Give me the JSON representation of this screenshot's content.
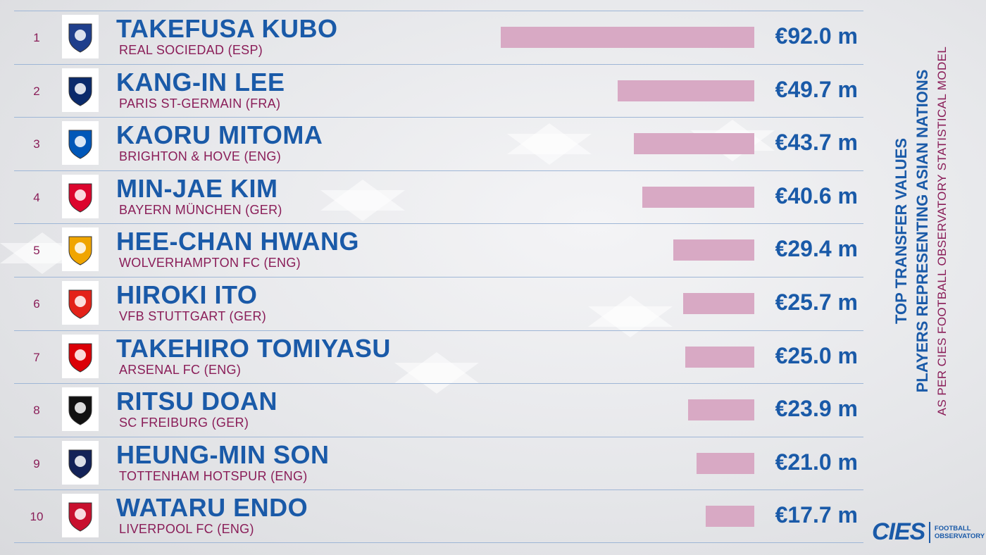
{
  "colors": {
    "primary": "#1a5aa8",
    "secondary": "#8a1d58",
    "bar": "#d8a9c4",
    "divider": "#9eb6d6"
  },
  "side": {
    "title_line1": "TOP TRANSFER VALUES",
    "title_line2": "PLAYERS REPRESENTING ASIAN NATIONS",
    "subtitle": "AS PER CIES FOOTBALL OBSERVATORY STATISTICAL MODEL"
  },
  "brand": {
    "name": "CIES",
    "line1": "FOOTBALL",
    "line2": "OBSERVATORY"
  },
  "chart_data": {
    "type": "bar",
    "orientation": "horizontal",
    "title": "TOP TRANSFER VALUES PLAYERS REPRESENTING ASIAN NATIONS",
    "subtitle": "AS PER CIES FOOTBALL OBSERVATORY STATISTICAL MODEL",
    "unit": "€ m",
    "categories": [
      "TAKEFUSA KUBO",
      "KANG-IN LEE",
      "KAORU MITOMA",
      "MIN-JAE KIM",
      "HEE-CHAN HWANG",
      "HIROKI ITO",
      "TAKEHIRO TOMIYASU",
      "RITSU DOAN",
      "HEUNG-MIN SON",
      "WATARU ENDO"
    ],
    "values": [
      92.0,
      49.7,
      43.7,
      40.6,
      29.4,
      25.7,
      25.0,
      23.9,
      21.0,
      17.7
    ],
    "rows": [
      {
        "rank": "1",
        "name": "TAKEFUSA KUBO",
        "club": "REAL SOCIEDAD (ESP)",
        "value": 92.0,
        "value_label": "€92.0 m",
        "logo": "real-sociedad-crest-icon",
        "logo_color": "#1f3f8c"
      },
      {
        "rank": "2",
        "name": "KANG-IN LEE",
        "club": "PARIS ST-GERMAIN (FRA)",
        "value": 49.7,
        "value_label": "€49.7 m",
        "logo": "psg-crest-icon",
        "logo_color": "#0a2a6b"
      },
      {
        "rank": "3",
        "name": "KAORU MITOMA",
        "club": "BRIGHTON & HOVE (ENG)",
        "value": 43.7,
        "value_label": "€43.7 m",
        "logo": "brighton-crest-icon",
        "logo_color": "#0057b8"
      },
      {
        "rank": "4",
        "name": "MIN-JAE KIM",
        "club": "BAYERN MÜNCHEN (GER)",
        "value": 40.6,
        "value_label": "€40.6 m",
        "logo": "bayern-crest-icon",
        "logo_color": "#dc052d"
      },
      {
        "rank": "5",
        "name": "HEE-CHAN HWANG",
        "club": "WOLVERHAMPTON FC (ENG)",
        "value": 29.4,
        "value_label": "€29.4 m",
        "logo": "wolves-crest-icon",
        "logo_color": "#f0a500"
      },
      {
        "rank": "6",
        "name": "HIROKI ITO",
        "club": "VFB STUTTGART (GER)",
        "value": 25.7,
        "value_label": "€25.7 m",
        "logo": "stuttgart-crest-icon",
        "logo_color": "#e32219"
      },
      {
        "rank": "7",
        "name": "TAKEHIRO TOMIYASU",
        "club": "ARSENAL FC (ENG)",
        "value": 25.0,
        "value_label": "€25.0 m",
        "logo": "arsenal-crest-icon",
        "logo_color": "#db0007"
      },
      {
        "rank": "8",
        "name": "RITSU DOAN",
        "club": "SC FREIBURG (GER)",
        "value": 23.9,
        "value_label": "€23.9 m",
        "logo": "freiburg-crest-icon",
        "logo_color": "#111111"
      },
      {
        "rank": "9",
        "name": "HEUNG-MIN SON",
        "club": "TOTTENHAM HOTSPUR (ENG)",
        "value": 21.0,
        "value_label": "€21.0 m",
        "logo": "tottenham-crest-icon",
        "logo_color": "#132257"
      },
      {
        "rank": "10",
        "name": "WATARU ENDO",
        "club": "LIVERPOOL FC (ENG)",
        "value": 17.7,
        "value_label": "€17.7 m",
        "logo": "liverpool-crest-icon",
        "logo_color": "#c8102e"
      }
    ]
  }
}
